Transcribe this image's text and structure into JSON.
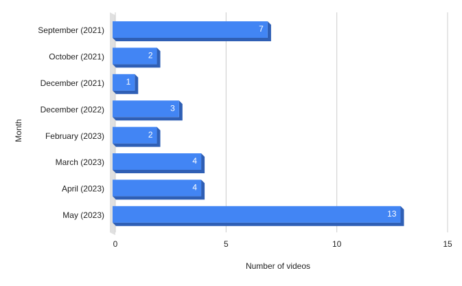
{
  "chart_data": {
    "type": "bar",
    "orientation": "horizontal",
    "categories": [
      "September (2021)",
      "October (2021)",
      "December (2021)",
      "December (2022)",
      "February (2023)",
      "March (2023)",
      "April (2023)",
      "May (2023)"
    ],
    "values": [
      7,
      2,
      1,
      3,
      2,
      4,
      4,
      13
    ],
    "color": "#4285f4",
    "xlim": [
      0,
      15
    ],
    "xticks": [
      0,
      5,
      10,
      15
    ],
    "grid": true,
    "xlabel": "Number of videos",
    "ylabel": "Month"
  }
}
